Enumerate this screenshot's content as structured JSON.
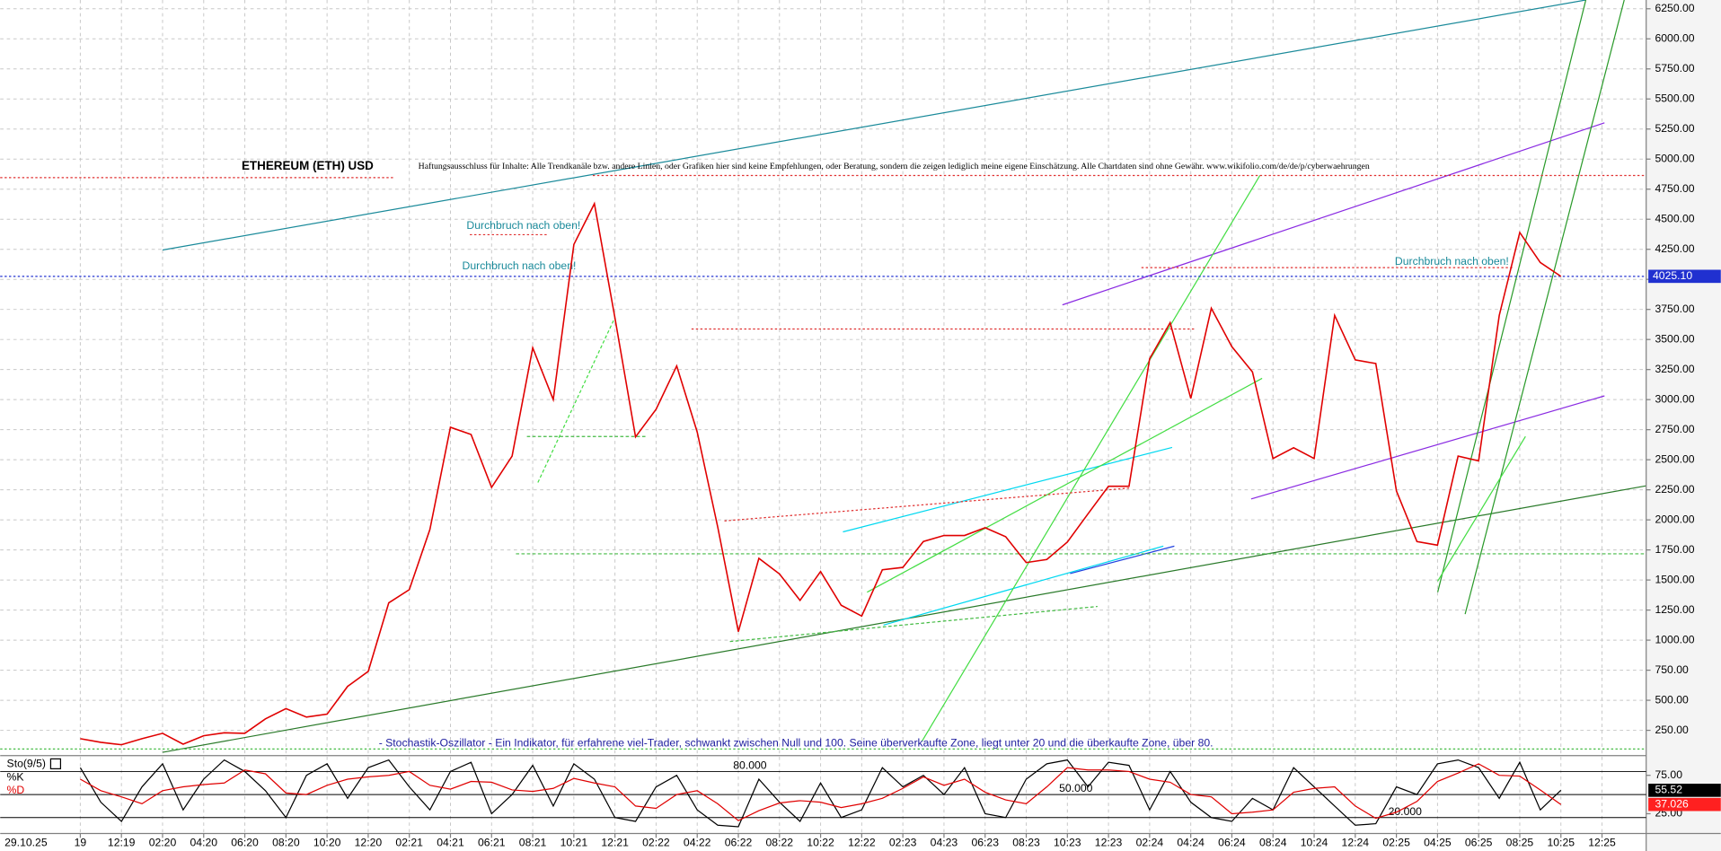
{
  "chart_data": {
    "type": "line",
    "title": "ETHEREUM (ETH) USD",
    "subtitle": "Haftungsausschluss für Inhalte: Alle Trendkanäle bzw. andere Linien, oder Grafiken hier sind keine Empfehlungen, oder Beratung, sondern die zeigen lediglich meine eigene Einschätzung. Alle Chartdaten sind ohne Gewähr.  www.wikifolio.com/de/de/p/cyberwaehrungen",
    "annotations": [
      "Durchbruch nach oben!",
      "Durchbruch nach oben!",
      "Durchbruch nach oben!"
    ],
    "date_label": "29.10.25",
    "categories": [
      "19",
      null,
      "12:19",
      null,
      "02:20",
      null,
      "04:20",
      null,
      "06:20",
      null,
      "08:20",
      null,
      "10:20",
      null,
      "12:20",
      null,
      "02:21",
      null,
      "04:21",
      null,
      "06:21",
      null,
      "08:21",
      null,
      "10:21",
      null,
      "12:21",
      null,
      "02:22",
      null,
      "04:22",
      null,
      "06:22",
      null,
      "08:22",
      null,
      "10:22",
      null,
      "12:22",
      null,
      "02:23",
      null,
      "04:23",
      null,
      "06:23",
      null,
      "08:23",
      null,
      "10:23",
      null,
      "12:23",
      null,
      "02:24",
      null,
      "04:24",
      null,
      "06:24",
      null,
      "08:24",
      null,
      "10:24",
      null,
      "12:24",
      null,
      "02:25",
      null,
      "04:25",
      null,
      "06:25",
      null,
      "08:25",
      null,
      "10:25",
      null,
      "12:25"
    ],
    "series": [
      {
        "color": "#e00000",
        "values": [
          180,
          150,
          130,
          180,
          225,
          135,
          205,
          230,
          225,
          345,
          430,
          360,
          385,
          615,
          740,
          1310,
          1420,
          1920,
          2770,
          2710,
          2270,
          2530,
          3430,
          3000,
          4290,
          4630,
          3680,
          2690,
          2920,
          3280,
          2730,
          1940,
          1070,
          1680,
          1550,
          1330,
          1570,
          1290,
          1200,
          1585,
          1605,
          1820,
          1870,
          1870,
          1935,
          1860,
          1645,
          1670,
          1815,
          2050,
          2280,
          2280,
          3340,
          3640,
          3010,
          3760,
          3440,
          3230,
          2510,
          2600,
          2510,
          3700,
          3330,
          3300,
          2240,
          1820,
          1790,
          2530,
          2490,
          3700,
          4390,
          4140,
          4025.1,
          null,
          null
        ]
      }
    ],
    "current_price": {
      "value": 4025.1,
      "label": "4025.10"
    },
    "ylim": [
      49,
      6323
    ],
    "yticks": [
      {
        "value": 250,
        "label": "250.00"
      },
      {
        "value": 500,
        "label": "500.00"
      },
      {
        "value": 750,
        "label": "750.00"
      },
      {
        "value": 1000,
        "label": "1000.00"
      },
      {
        "value": 1250,
        "label": "1250.00"
      },
      {
        "value": 1500,
        "label": "1500.00"
      },
      {
        "value": 1750,
        "label": "1750.00"
      },
      {
        "value": 2000,
        "label": "2000.00"
      },
      {
        "value": 2250,
        "label": "2250.00"
      },
      {
        "value": 2500,
        "label": "2500.00"
      },
      {
        "value": 2750,
        "label": "2750.00"
      },
      {
        "value": 3000,
        "label": "3000.00"
      },
      {
        "value": 3250,
        "label": "3250.00"
      },
      {
        "value": 3500,
        "label": "3500.00"
      },
      {
        "value": 3750,
        "label": "3750.00"
      },
      {
        "value": 4000,
        "label": "4000.00"
      },
      {
        "value": 4250,
        "label": "4250.00"
      },
      {
        "value": 4500,
        "label": "4500.00"
      },
      {
        "value": 4750,
        "label": "4750.00"
      },
      {
        "value": 5000,
        "label": "5000.00"
      },
      {
        "value": 5250,
        "label": "5250.00"
      },
      {
        "value": 5500,
        "label": "5500.00"
      },
      {
        "value": 5750,
        "label": "5750.00"
      },
      {
        "value": 6000,
        "label": "6000.00"
      },
      {
        "value": 6250,
        "label": "6250.00"
      }
    ],
    "grid": true,
    "indicator": {
      "type": "line",
      "name": "Sto(9/5)",
      "description": "- Stochastik-Oszillator - Ein Indikator, für erfahrene viel-Trader, schwankt zwischen Null und 100. Seine überverkaufte Zone, liegt unter 20 und die überkaufte Zone, über 80.",
      "ylim": [
        0,
        100
      ],
      "yticks": [
        {
          "value": 25,
          "label": "25.00"
        },
        {
          "value": 75,
          "label": "75.00"
        }
      ],
      "levels": [
        {
          "value": 80,
          "label": "80.000"
        },
        {
          "value": 50,
          "label": "50.000"
        },
        {
          "value": 20,
          "label": "20.000"
        }
      ],
      "series": [
        {
          "name": "%K",
          "color": "#000000",
          "values": [
            85,
            40,
            15,
            60,
            90,
            30,
            70,
            95,
            80,
            55,
            20,
            75,
            90,
            45,
            85,
            95,
            60,
            30,
            80,
            92,
            25,
            50,
            88,
            35,
            90,
            70,
            20,
            15,
            60,
            75,
            30,
            10,
            8,
            70,
            40,
            15,
            65,
            20,
            30,
            85,
            60,
            75,
            50,
            85,
            25,
            20,
            70,
            90,
            95,
            60,
            92,
            88,
            30,
            80,
            40,
            20,
            15,
            45,
            30,
            85,
            60,
            35,
            10,
            12,
            60,
            50,
            90,
            95,
            85,
            45,
            92,
            30,
            55.52,
            null,
            null
          ]
        },
        {
          "name": "%D",
          "color": "#e00000",
          "values": [
            70,
            55,
            47,
            38,
            55,
            60,
            63,
            65,
            82,
            77,
            52,
            50,
            62,
            70,
            73,
            75,
            80,
            62,
            57,
            67,
            66,
            56,
            54,
            58,
            71,
            65,
            60,
            35,
            32,
            50,
            55,
            38,
            16,
            29,
            39,
            42,
            40,
            33,
            38,
            45,
            58,
            73,
            62,
            70,
            53,
            43,
            38,
            60,
            85,
            82,
            82,
            80,
            70,
            66,
            50,
            47,
            25,
            27,
            30,
            53,
            58,
            60,
            35,
            19,
            27,
            41,
            67,
            78,
            90,
            75,
            74,
            56,
            37.026,
            null,
            null
          ]
        }
      ]
    }
  }
}
